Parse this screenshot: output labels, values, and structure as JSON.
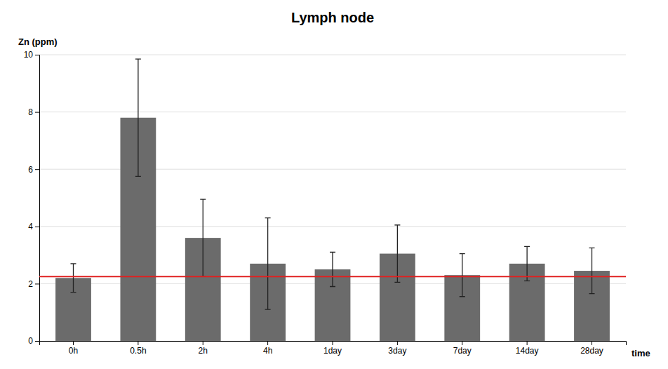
{
  "chart_data": {
    "type": "bar",
    "title": "Lymph node",
    "ylabel": "Zn (ppm)",
    "xlabel": "time",
    "categories": [
      "0h",
      "0.5h",
      "2h",
      "4h",
      "1day",
      "3day",
      "7day",
      "14day",
      "28day"
    ],
    "values": [
      2.2,
      7.8,
      3.6,
      2.7,
      2.5,
      3.05,
      2.3,
      2.7,
      2.45
    ],
    "errors": [
      0.5,
      2.05,
      1.35,
      1.6,
      0.6,
      1.0,
      0.75,
      0.6,
      0.8
    ],
    "color": "#6b6b6b",
    "reference_lines": [
      {
        "value": 2.25,
        "color": "#e02020"
      }
    ],
    "ylim": [
      0,
      10
    ],
    "yticks": [
      0,
      2,
      4,
      6,
      8,
      10
    ],
    "grid": true
  }
}
